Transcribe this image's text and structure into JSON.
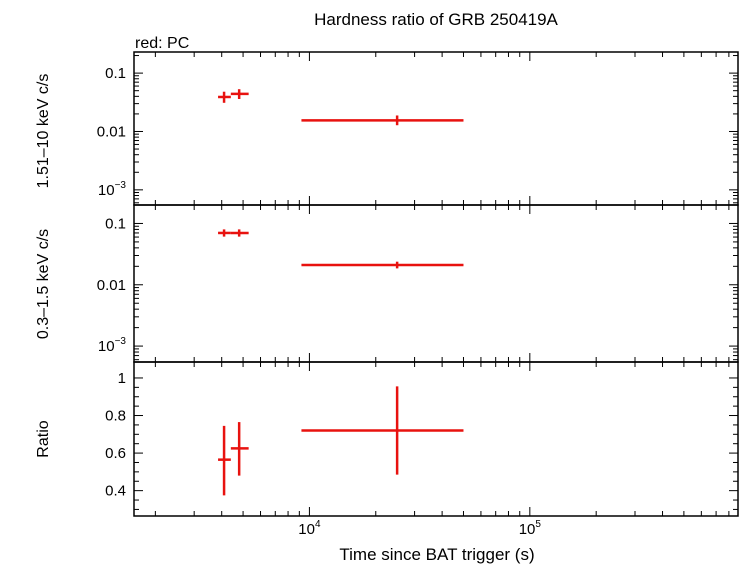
{
  "chart_data": {
    "type": "scatter",
    "title": "Hardness ratio of GRB 250419A",
    "subtitle": "red: PC",
    "xlabel": "Time since BAT trigger (s)",
    "xscale": "log",
    "xlim": [
      1600,
      880000
    ],
    "x_ticks": [
      {
        "value": 10000,
        "mant": "10",
        "exp": "4"
      },
      {
        "value": 100000,
        "mant": "10",
        "exp": "5"
      }
    ],
    "series_color": "#e8120f",
    "panels": [
      {
        "name": "hard-band",
        "ylabel": "1.51–10 keV c/s",
        "yscale": "log",
        "ylim": [
          0.00055,
          0.23
        ],
        "y_ticks": [
          {
            "value": 0.1,
            "label": "0.1"
          },
          {
            "value": 0.01,
            "label": "0.01"
          },
          {
            "value": 0.001,
            "mant": "10",
            "exp": "−3"
          }
        ],
        "points": [
          {
            "x": 4100,
            "xlo": 3850,
            "xhi": 4400,
            "y": 0.039,
            "ylo": 0.031,
            "yhi": 0.048
          },
          {
            "x": 4800,
            "xlo": 4400,
            "xhi": 5300,
            "y": 0.044,
            "ylo": 0.036,
            "yhi": 0.053
          },
          {
            "x": 25000,
            "xlo": 9200,
            "xhi": 50000,
            "y": 0.0155,
            "ylo": 0.0128,
            "yhi": 0.0188
          }
        ]
      },
      {
        "name": "soft-band",
        "ylabel": "0.3–1.5 keV c/s",
        "yscale": "log",
        "ylim": [
          0.00055,
          0.2
        ],
        "y_ticks": [
          {
            "value": 0.1,
            "label": "0.1"
          },
          {
            "value": 0.01,
            "label": "0.01"
          },
          {
            "value": 0.001,
            "mant": "10",
            "exp": "−3"
          }
        ],
        "points": [
          {
            "x": 4100,
            "xlo": 3850,
            "xhi": 4400,
            "y": 0.07,
            "ylo": 0.061,
            "yhi": 0.08
          },
          {
            "x": 4800,
            "xlo": 4400,
            "xhi": 5300,
            "y": 0.07,
            "ylo": 0.061,
            "yhi": 0.08
          },
          {
            "x": 25000,
            "xlo": 9200,
            "xhi": 50000,
            "y": 0.021,
            "ylo": 0.0185,
            "yhi": 0.0238
          }
        ]
      },
      {
        "name": "ratio",
        "ylabel": "Ratio",
        "yscale": "linear",
        "ylim": [
          0.265,
          1.085
        ],
        "y_ticks": [
          {
            "value": 0.4,
            "label": "0.4"
          },
          {
            "value": 0.6,
            "label": "0.6"
          },
          {
            "value": 0.8,
            "label": "0.8"
          },
          {
            "value": 1,
            "label": "1"
          }
        ],
        "points": [
          {
            "x": 4100,
            "xlo": 3850,
            "xhi": 4400,
            "y": 0.565,
            "ylo": 0.375,
            "yhi": 0.745
          },
          {
            "x": 4800,
            "xlo": 4400,
            "xhi": 5300,
            "y": 0.625,
            "ylo": 0.48,
            "yhi": 0.765
          },
          {
            "x": 25000,
            "xlo": 9200,
            "xhi": 50000,
            "y": 0.72,
            "ylo": 0.485,
            "yhi": 0.955
          }
        ]
      }
    ]
  }
}
